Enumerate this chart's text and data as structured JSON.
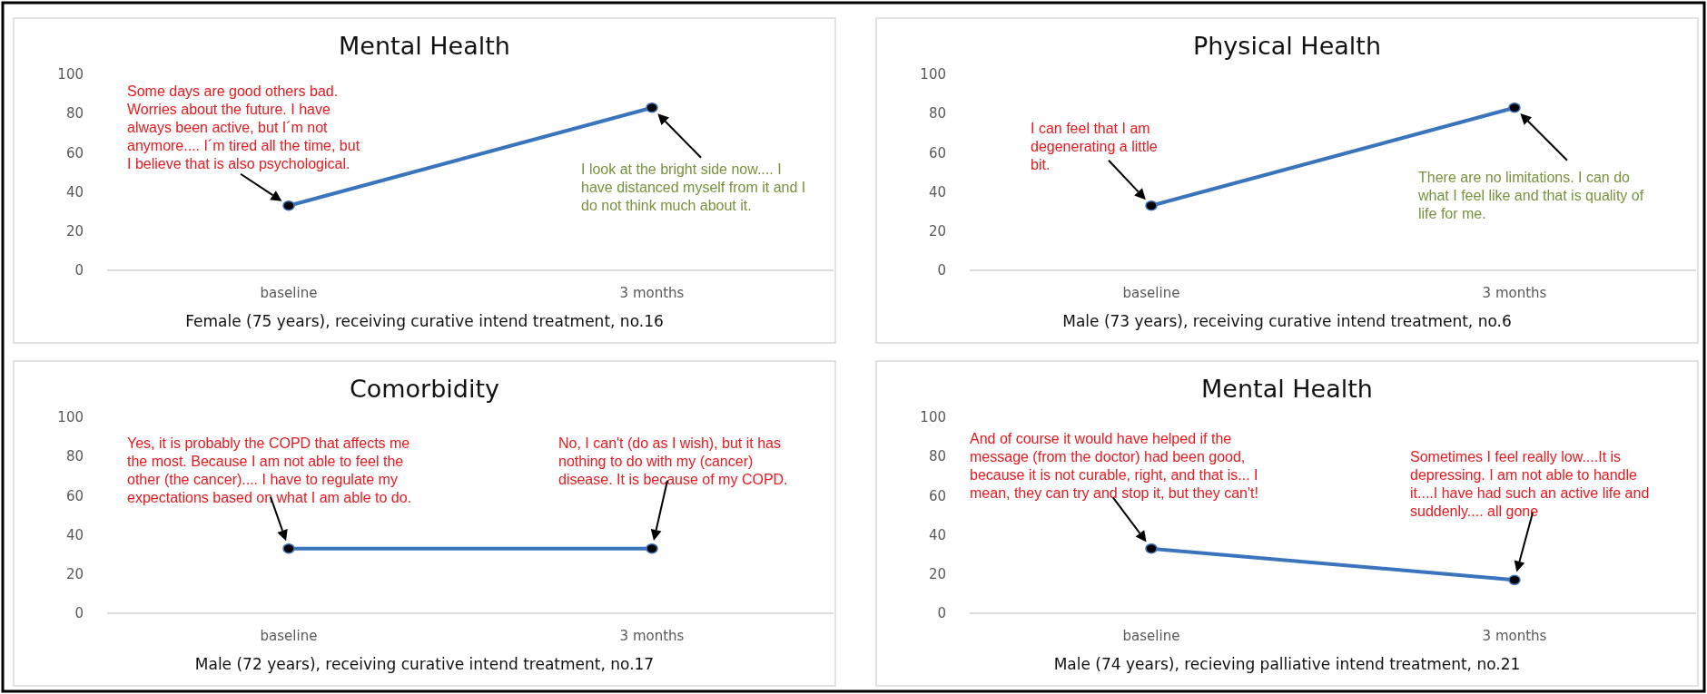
{
  "chart_data": [
    {
      "type": "line",
      "title": "Mental Health",
      "xlabel": "Female (75 years), receiving curative intend treatment, no.16",
      "categories": [
        "baseline",
        "3 months"
      ],
      "series": [
        {
          "color": "#3a74bd",
          "values": [
            33,
            83
          ]
        }
      ],
      "ylim": [
        0,
        100
      ],
      "yticks": [
        0,
        20,
        40,
        60,
        80,
        100
      ],
      "grid": false,
      "marker": "circle",
      "annotations": [
        "Some days are good others bad. Worries about the future. I have always been active, but I´m not anymore.... I´m tired all the time, but I believe that is also psychological.",
        "I look at the bright side now.... I have distanced myself from it and I do not think much about it."
      ]
    },
    {
      "type": "line",
      "title": "Physical Health",
      "xlabel": "Male (73 years), receiving curative intend treatment, no.6",
      "categories": [
        "baseline",
        "3 months"
      ],
      "series": [
        {
          "color": "#3a74bd",
          "values": [
            33,
            83
          ]
        }
      ],
      "ylim": [
        0,
        100
      ],
      "yticks": [
        0,
        20,
        40,
        60,
        80,
        100
      ],
      "grid": false,
      "marker": "circle",
      "annotations": [
        "I can feel that I am degenerating a little bit.",
        "There are no limitations. I can do what I feel like and that is quality of life for me."
      ]
    },
    {
      "type": "line",
      "title": "Comorbidity",
      "xlabel": "Male (72 years), receiving curative intend treatment, no.17",
      "categories": [
        "baseline",
        "3 months"
      ],
      "series": [
        {
          "color": "#3a74bd",
          "values": [
            33,
            33
          ]
        }
      ],
      "ylim": [
        0,
        100
      ],
      "yticks": [
        0,
        20,
        40,
        60,
        80,
        100
      ],
      "grid": false,
      "marker": "circle",
      "annotations": [
        "Yes, it is probably the COPD that affects me the most. Because I am not able to feel the other (the cancer).... I have to regulate my expectations based on what I am able to do.",
        "No, I can't (do as I wish), but it has nothing to do with my (cancer) disease. It is because of my COPD."
      ]
    },
    {
      "type": "line",
      "title": "Mental Health",
      "xlabel": "Male (74 years), recieving palliative intend treatment, no.21",
      "categories": [
        "baseline",
        "3 months"
      ],
      "series": [
        {
          "color": "#3a74bd",
          "values": [
            33,
            17
          ]
        }
      ],
      "ylim": [
        0,
        100
      ],
      "yticks": [
        0,
        20,
        40,
        60,
        80,
        100
      ],
      "grid": false,
      "marker": "circle",
      "annotations": [
        "And of course it would have helped if the message (from the doctor) had been good, because it is not curable, right, and that is... I mean, they can try and stop it, but they can't!",
        "Sometimes I feel really low....It is depressing. I am not able to handle it....I have had such an active life and suddenly.... all gone"
      ]
    }
  ]
}
